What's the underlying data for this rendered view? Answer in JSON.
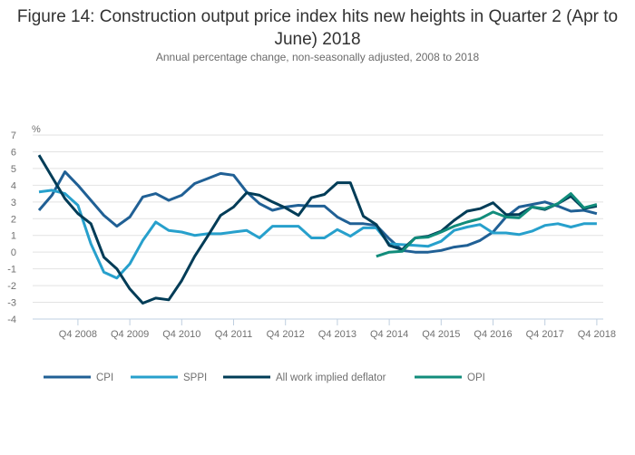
{
  "chart_data": {
    "type": "line",
    "title": "Figure 14: Construction output price index hits new heights in Quarter 2 (Apr to June) 2018",
    "subtitle": "Annual percentage change, non-seasonally adjusted, 2008 to 2018",
    "xlabel": "",
    "ylabel": "%",
    "ylim": [
      -4,
      7
    ],
    "yticks": [
      7,
      6,
      5,
      4,
      3,
      2,
      1,
      0,
      -1,
      -2,
      -3,
      -4
    ],
    "grid": true,
    "legend_position": "bottom",
    "x": [
      "Q1 2008",
      "Q2 2008",
      "Q3 2008",
      "Q4 2008",
      "Q1 2009",
      "Q2 2009",
      "Q3 2009",
      "Q4 2009",
      "Q1 2010",
      "Q2 2010",
      "Q3 2010",
      "Q4 2010",
      "Q1 2011",
      "Q2 2011",
      "Q3 2011",
      "Q4 2011",
      "Q1 2012",
      "Q2 2012",
      "Q3 2012",
      "Q4 2012",
      "Q1 2013",
      "Q2 2013",
      "Q3 2013",
      "Q4 2013",
      "Q1 2014",
      "Q2 2014",
      "Q3 2014",
      "Q4 2014",
      "Q1 2015",
      "Q2 2015",
      "Q3 2015",
      "Q4 2015",
      "Q1 2016",
      "Q2 2016",
      "Q3 2016",
      "Q4 2016",
      "Q1 2017",
      "Q2 2017",
      "Q3 2017",
      "Q4 2017",
      "Q1 2018",
      "Q2 2018",
      "Q3 2018",
      "Q4 2018"
    ],
    "xtick_labels": [
      "Q4 2008",
      "Q4 2009",
      "Q4 2010",
      "Q4 2011",
      "Q4 2012",
      "Q4 2013",
      "Q4 2014",
      "Q4 2015",
      "Q4 2016",
      "Q4 2017",
      "Q4 2018"
    ],
    "series": [
      {
        "name": "CPI",
        "color": "#206095",
        "values": [
          2.5,
          3.4,
          4.8,
          4.0,
          3.1,
          2.2,
          1.55,
          2.1,
          3.3,
          3.5,
          3.1,
          3.4,
          4.1,
          4.4,
          4.7,
          4.6,
          3.6,
          2.9,
          2.5,
          2.7,
          2.8,
          2.75,
          2.75,
          2.1,
          1.7,
          1.7,
          1.6,
          0.8,
          0.1,
          0.0,
          0.0,
          0.1,
          0.3,
          0.4,
          0.7,
          1.2,
          2.1,
          2.7,
          2.85,
          3.0,
          2.75,
          2.45,
          2.5,
          2.3
        ]
      },
      {
        "name": "SPPI",
        "color": "#27a0cc",
        "values": [
          3.6,
          3.7,
          3.5,
          2.8,
          0.5,
          -1.2,
          -1.55,
          -0.7,
          0.7,
          1.8,
          1.3,
          1.2,
          1.0,
          1.1,
          1.1,
          1.2,
          1.3,
          0.85,
          1.55,
          1.55,
          1.55,
          0.85,
          0.85,
          1.35,
          0.95,
          1.45,
          1.45,
          0.5,
          0.45,
          0.4,
          0.35,
          0.65,
          1.3,
          1.5,
          1.65,
          1.15,
          1.15,
          1.05,
          1.25,
          1.6,
          1.7,
          1.5,
          1.7,
          1.7
        ]
      },
      {
        "name": "All work implied deflator",
        "color": "#003c57",
        "values": [
          5.8,
          4.5,
          3.2,
          2.3,
          1.7,
          -0.3,
          -1.0,
          -2.2,
          -3.05,
          -2.75,
          -2.85,
          -1.7,
          -0.25,
          0.95,
          2.2,
          2.7,
          3.55,
          3.4,
          3.0,
          2.65,
          2.2,
          3.25,
          3.45,
          4.15,
          4.15,
          2.15,
          1.65,
          0.4,
          0.15,
          0.85,
          0.95,
          1.25,
          1.9,
          2.45,
          2.6,
          2.95,
          2.25,
          2.25,
          2.7,
          2.55,
          2.9,
          3.35,
          2.6,
          2.75
        ]
      },
      {
        "name": "OPI",
        "color": "#118c7b",
        "values": [
          null,
          null,
          null,
          null,
          null,
          null,
          null,
          null,
          null,
          null,
          null,
          null,
          null,
          null,
          null,
          null,
          null,
          null,
          null,
          null,
          null,
          null,
          null,
          null,
          null,
          null,
          -0.25,
          0.0,
          0.05,
          0.85,
          0.9,
          1.2,
          1.55,
          1.8,
          2.0,
          2.4,
          2.1,
          2.05,
          2.7,
          2.6,
          2.9,
          3.5,
          2.65,
          2.85
        ]
      }
    ]
  },
  "colors": {
    "gridline": "#e2e2e2",
    "axis": "#bfcfe0",
    "text": "#707070"
  }
}
